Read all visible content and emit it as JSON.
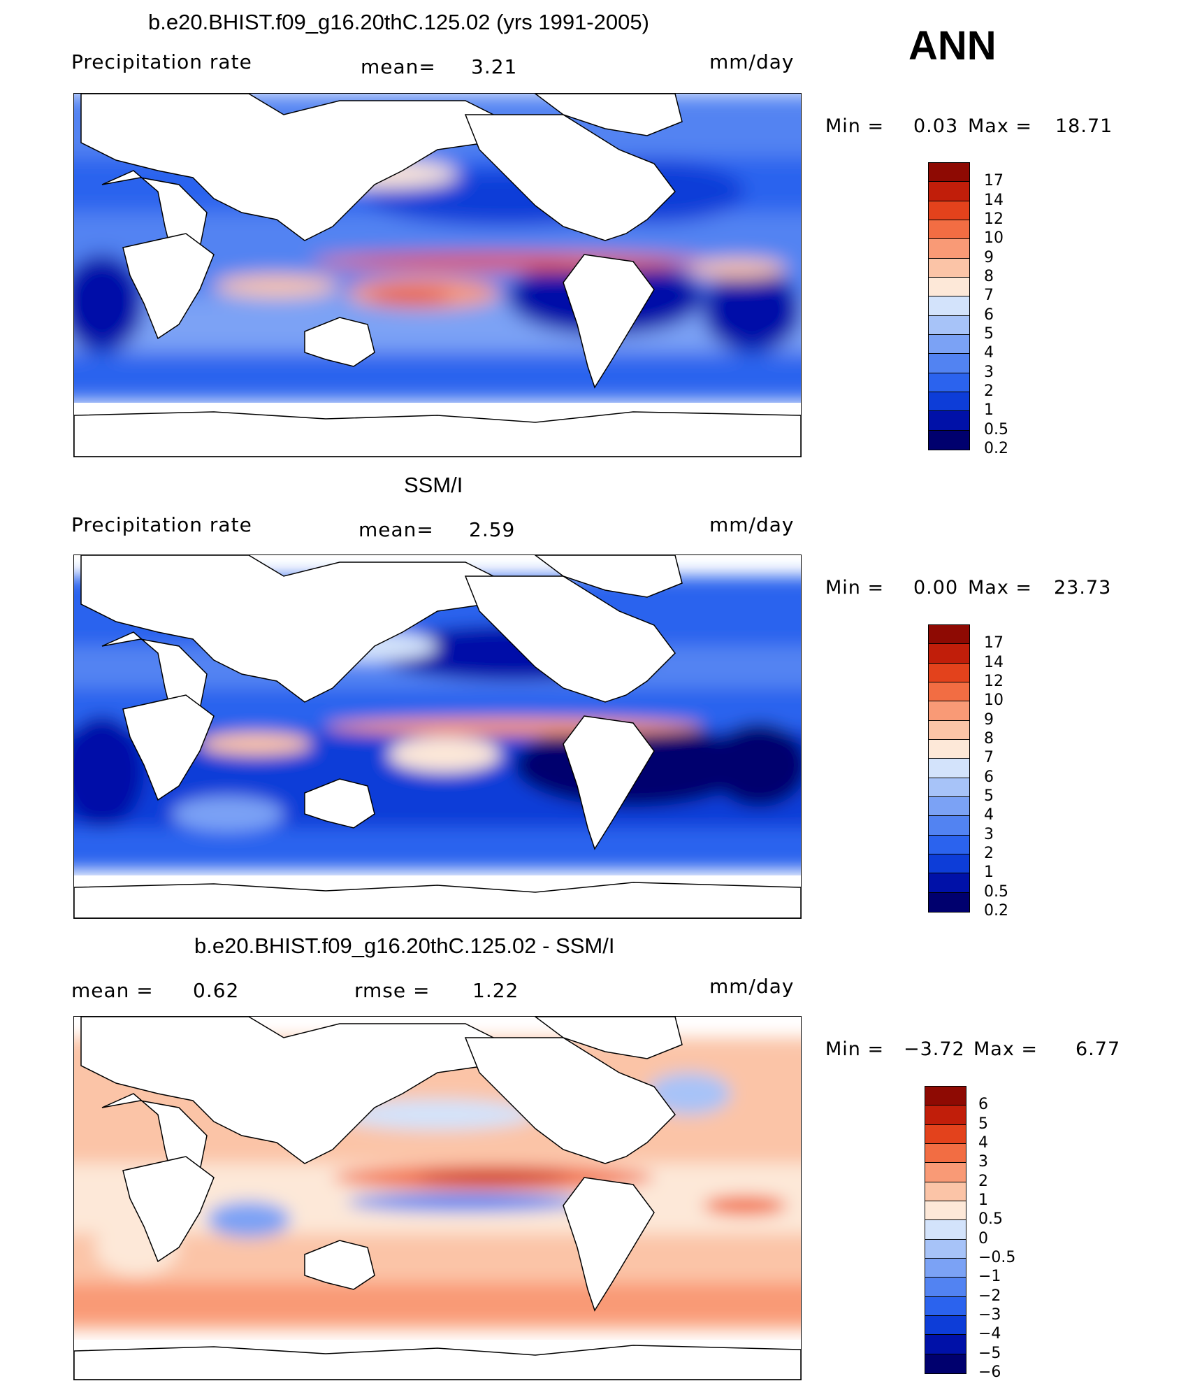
{
  "header": {
    "season": "ANN",
    "colors": {
      "seq": [
        "#00006e",
        "#0011a8",
        "#0d3dd8",
        "#2b63ee",
        "#5283f2",
        "#7ba2f5",
        "#a7c3f8",
        "#d3e3fb",
        "#fde8d8",
        "#fbc4a7",
        "#f99a76",
        "#f26d43",
        "#e3421c",
        "#c11e0a",
        "#8e0a03"
      ],
      "div": [
        "#00006e",
        "#0011a8",
        "#0d3dd8",
        "#2b63ee",
        "#5283f2",
        "#7ba2f5",
        "#a7c3f8",
        "#d3e3fb",
        "#fde8d8",
        "#fbc4a7",
        "#f99a76",
        "#f26d43",
        "#e3421c",
        "#c11e0a",
        "#8e0a03"
      ]
    }
  },
  "panels": [
    {
      "title": "b.e20.BHIST.f09_g16.20thC.125.02 (yrs 1991-2005)",
      "left_label": "Precipitation  rate",
      "mid_label": "mean=",
      "mid_value": "3.21",
      "units": "mm/day",
      "min_label": "Min  =",
      "min_value": "0.03",
      "max_label": "Max  =",
      "max_value": "18.71",
      "levels": [
        "17",
        "14",
        "12",
        "10",
        "9",
        "8",
        "7",
        "6",
        "5",
        "4",
        "3",
        "2",
        "1",
        "0.5",
        "0.2"
      ]
    },
    {
      "title": "SSM/I",
      "left_label": "Precipitation  rate",
      "mid_label": "mean=",
      "mid_value": "2.59",
      "units": "mm/day",
      "min_label": "Min  =",
      "min_value": "0.00",
      "max_label": "Max  =",
      "max_value": "23.73",
      "levels": [
        "17",
        "14",
        "12",
        "10",
        "9",
        "8",
        "7",
        "6",
        "5",
        "4",
        "3",
        "2",
        "1",
        "0.5",
        "0.2"
      ]
    },
    {
      "title": "b.e20.BHIST.f09_g16.20thC.125.02 - SSM/I",
      "left_label": "mean  =",
      "left_value": "0.62",
      "mid_label": "rmse  =",
      "mid_value": "1.22",
      "units": "mm/day",
      "min_label": "Min  =",
      "min_value": "−3.72",
      "max_label": "Max  =",
      "max_value": "6.77",
      "levels": [
        "6",
        "5",
        "4",
        "3",
        "2",
        "1",
        "0.5",
        "0",
        "−0.5",
        "−1",
        "−2",
        "−3",
        "−4",
        "−5",
        "−6"
      ]
    }
  ]
}
